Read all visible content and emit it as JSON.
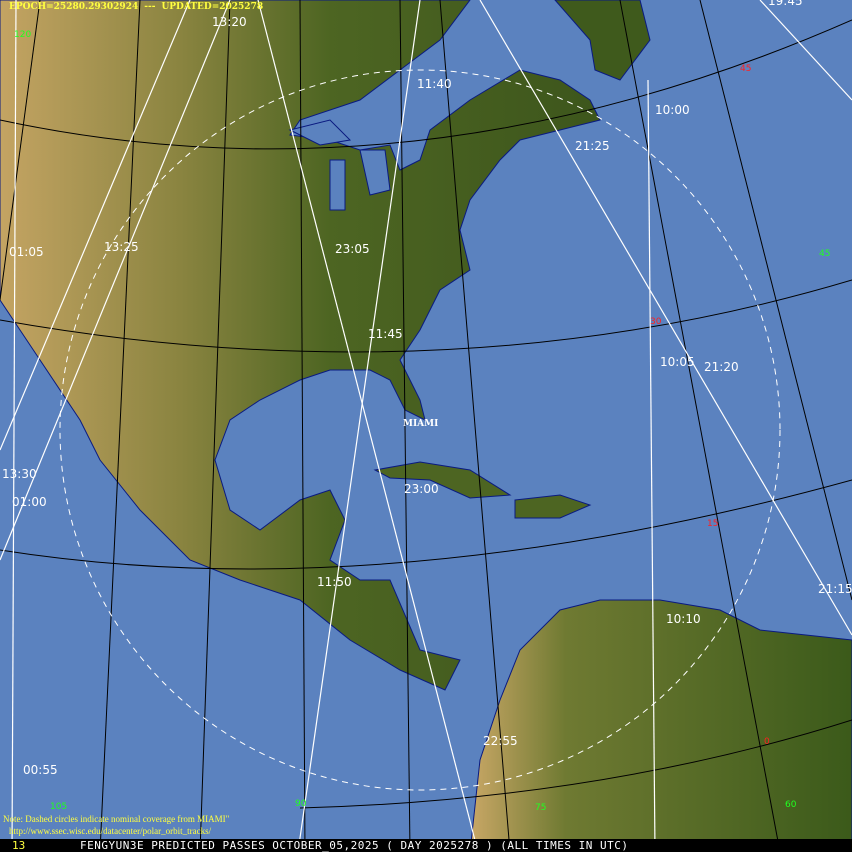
{
  "header": {
    "epoch": "EPOCH=25280.29302924",
    "separator": "---",
    "updated": "UPDATED=2025278"
  },
  "footer": {
    "frame_number": "13",
    "title": "FENGYUN3E PREDICTED PASSES OCTOBER_05,2025 ( DAY 2025278 ) (ALL TIMES IN UTC)"
  },
  "note": {
    "line1": "Note: Dashed circles indicate nominal coverage from MIAMI\"",
    "line2": "http://www.ssec.wisc.edu/datacenter/polar_orbit_tracks/"
  },
  "station": {
    "name": "MIAMI"
  },
  "pass_times": [
    "13:20",
    "19:45",
    "11:40",
    "10:00",
    "21:25",
    "01:05",
    "13:25",
    "23:05",
    "11:45",
    "10:05",
    "21:20",
    "13:30",
    "01:00",
    "23:00",
    "11:50",
    "10:10",
    "21:15",
    "22:55",
    "00:55"
  ],
  "latitude_labels": [
    "45",
    "30",
    "15",
    "0"
  ],
  "longitude_labels": [
    "120",
    "45",
    "105",
    "90",
    "75",
    "60"
  ],
  "colors": {
    "ocean": "#5b82bf",
    "land_low": "#3f5a1c",
    "land_high": "#c9a766",
    "track": "#ffffff",
    "graticule": "#000000",
    "lat_label": "#ff2020",
    "lon_label": "#20ff20",
    "header_text": "#ffff40"
  }
}
